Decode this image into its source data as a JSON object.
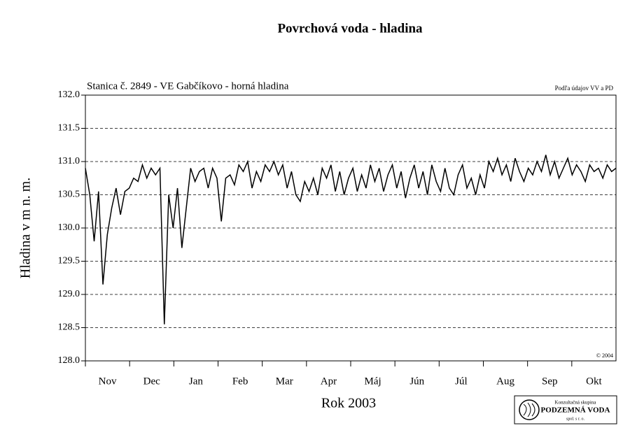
{
  "chart_data": {
    "type": "line",
    "title": "Povrchová voda - hladina",
    "subtitle": "Stanica č. 2849 - VE Gabčíkovo - horná hladina",
    "source_note": "Podľa údajov VV a PD",
    "copyright": "© 2004",
    "y_label": "Hladina v m n. m.",
    "x_label": "Rok 2003",
    "month_labels": [
      "Nov",
      "Dec",
      "Jan",
      "Feb",
      "Mar",
      "Apr",
      "Máj",
      "Jún",
      "Júl",
      "Aug",
      "Sep",
      "Okt"
    ],
    "logo": {
      "line1": "Konzultačná skupina",
      "line2": "PODZEMNÁ VODA",
      "line3": "spol. s r. o."
    },
    "ylim": [
      128,
      132
    ],
    "yticks": [
      {
        "value": 128,
        "label": "128.0"
      },
      128.5,
      {
        "value": 129,
        "label": "129.0"
      },
      129.5,
      {
        "value": 130,
        "label": "130.0"
      },
      130.5,
      {
        "value": 131,
        "label": "131.0"
      },
      131.5,
      {
        "value": 132,
        "label": "132.0"
      }
    ],
    "grid": true,
    "series": [
      {
        "color": "#000000",
        "values": [
          130.9,
          130.5,
          129.8,
          130.55,
          129.15,
          129.9,
          130.3,
          130.6,
          130.2,
          130.55,
          130.6,
          130.75,
          130.7,
          130.95,
          130.75,
          130.9,
          130.8,
          130.9,
          128.55,
          130.5,
          130.0,
          130.6,
          129.7,
          130.3,
          130.9,
          130.7,
          130.85,
          130.9,
          130.6,
          130.9,
          130.75,
          130.1,
          130.75,
          130.8,
          130.65,
          130.95,
          130.85,
          131.0,
          130.6,
          130.85,
          130.7,
          130.95,
          130.85,
          131.0,
          130.8,
          130.95,
          130.6,
          130.85,
          130.5,
          130.4,
          130.7,
          130.55,
          130.75,
          130.5,
          130.9,
          130.75,
          130.95,
          130.55,
          130.85,
          130.5,
          130.75,
          130.9,
          130.55,
          130.8,
          130.6,
          130.95,
          130.7,
          130.9,
          130.55,
          130.8,
          130.95,
          130.6,
          130.85,
          130.45,
          130.75,
          130.95,
          130.6,
          130.85,
          130.5,
          130.95,
          130.7,
          130.55,
          130.9,
          130.6,
          130.5,
          130.8,
          130.95,
          130.6,
          130.75,
          130.5,
          130.8,
          130.6,
          131.0,
          130.85,
          131.05,
          130.8,
          130.95,
          130.7,
          131.05,
          130.85,
          130.7,
          130.9,
          130.8,
          131.0,
          130.85,
          131.1,
          130.8,
          131.0,
          130.75,
          130.9,
          131.05,
          130.8,
          130.95,
          130.85,
          130.7,
          130.95,
          130.85,
          130.9,
          130.75,
          130.95,
          130.85,
          130.9
        ]
      }
    ]
  }
}
